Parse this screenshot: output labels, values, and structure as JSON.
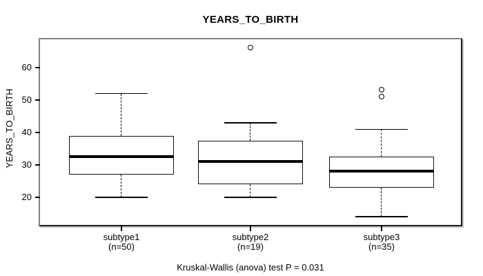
{
  "chart_data": {
    "type": "boxplot",
    "title": "YEARS_TO_BIRTH",
    "ylabel": "YEARS_TO_BIRTH",
    "caption": "Kruskal-Wallis (anova) test P = 0.031",
    "ylim": [
      11.5,
      68.7
    ],
    "yticks": [
      20,
      30,
      40,
      50,
      60
    ],
    "grid": false,
    "groups": [
      {
        "label": "subtype1",
        "n_label": "(n=50)",
        "n": 50,
        "whisker_low": 20,
        "q1": 27,
        "median": 32.5,
        "q3": 39,
        "whisker_high": 52,
        "outliers": []
      },
      {
        "label": "subtype2",
        "n_label": "(n=19)",
        "n": 19,
        "whisker_low": 20,
        "q1": 24,
        "median": 31,
        "q3": 37.5,
        "whisker_high": 43,
        "outliers": [
          66
        ]
      },
      {
        "label": "subtype3",
        "n_label": "(n=35)",
        "n": 35,
        "whisker_low": 14,
        "q1": 23,
        "median": 28,
        "q3": 32.5,
        "whisker_high": 41,
        "outliers": [
          51,
          53
        ]
      }
    ],
    "colors": {
      "line": "#000000",
      "box_fill": "#ffffff",
      "frame_gray": "#828282",
      "background": "#ffffff"
    }
  }
}
